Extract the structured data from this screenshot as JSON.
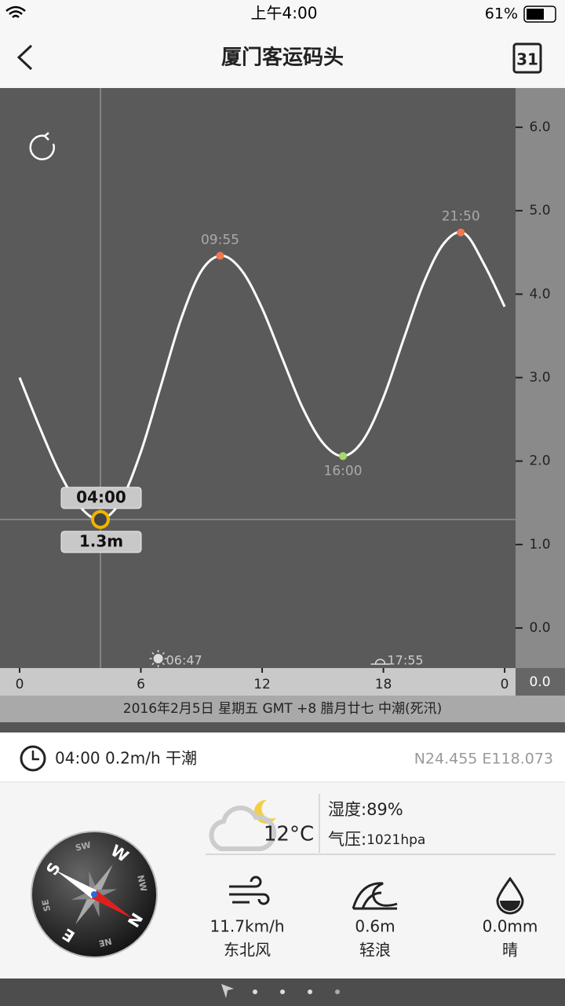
{
  "status_bar": {
    "time": "上午4:00",
    "battery": "61%"
  },
  "nav": {
    "title": "厦门客运码头",
    "calendar_day": "31"
  },
  "chart_data": {
    "type": "line",
    "x": [
      0,
      1,
      2,
      3,
      4,
      5,
      6,
      7,
      8,
      9,
      10,
      11,
      12,
      13,
      14,
      15,
      16,
      17,
      18,
      19,
      20,
      21,
      22,
      23,
      24
    ],
    "series": [
      {
        "color": "#ffffff",
        "values": [
          3.0,
          2.4,
          1.85,
          1.45,
          1.3,
          1.52,
          2.11,
          2.91,
          3.71,
          4.28,
          4.46,
          4.28,
          3.83,
          3.23,
          2.64,
          2.22,
          2.06,
          2.25,
          2.76,
          3.46,
          4.14,
          4.61,
          4.73,
          4.35,
          3.85
        ]
      }
    ],
    "xlim": [
      -0.97,
      24.54
    ],
    "ylim": [
      -0.48,
      6.47
    ],
    "xticks": [
      0,
      6,
      12,
      18,
      {
        "value": 24,
        "label": "0"
      }
    ],
    "yticks": [
      {
        "value": 0,
        "label": "0.0"
      },
      {
        "value": 1,
        "label": "1.0"
      },
      {
        "value": 2,
        "label": "2.0"
      },
      {
        "value": 3,
        "label": "3.0"
      },
      {
        "value": 4,
        "label": "4.0"
      },
      {
        "value": 5,
        "label": "5.0"
      },
      {
        "value": 6,
        "label": "6.0"
      }
    ],
    "extremes": [
      {
        "x": 9.92,
        "value": 4.46,
        "label": "09:55",
        "color": "#f07850"
      },
      {
        "x": 16,
        "value": 2.06,
        "label": "16:00",
        "color": "#a6d96a"
      },
      {
        "x": 21.83,
        "value": 4.74,
        "label": "21:50",
        "color": "#f07850"
      }
    ],
    "cursor": {
      "x": 4,
      "value": 1.3,
      "label": "04:00",
      "value_label": "1.3m"
    },
    "sunrise": {
      "x": 6.78,
      "label": "06:47"
    },
    "sunset": {
      "x": 17.92,
      "label": "17:55"
    },
    "corner_label": "0.0",
    "footer": "2016年2月5日 星期五 GMT +8 腊月廿七 中潮(死汛)"
  },
  "info": {
    "current": "04:00 0.2m/h 干潮",
    "coordinates": "N24.455 E118.073"
  },
  "weather": {
    "temperature": "12°C",
    "humidity": "湿度:89%",
    "pressure_label": "气压:",
    "pressure_value": "1021hpa",
    "wind_speed": "11.7km/h",
    "wind_direction": "东北风",
    "wave_height": "0.6m",
    "wave_level": "轻浪",
    "rain": "0.0mm",
    "sky": "晴"
  },
  "compass": {
    "labels": [
      "N",
      "NE",
      "E",
      "SE",
      "S",
      "SW",
      "W",
      "NW"
    ]
  }
}
